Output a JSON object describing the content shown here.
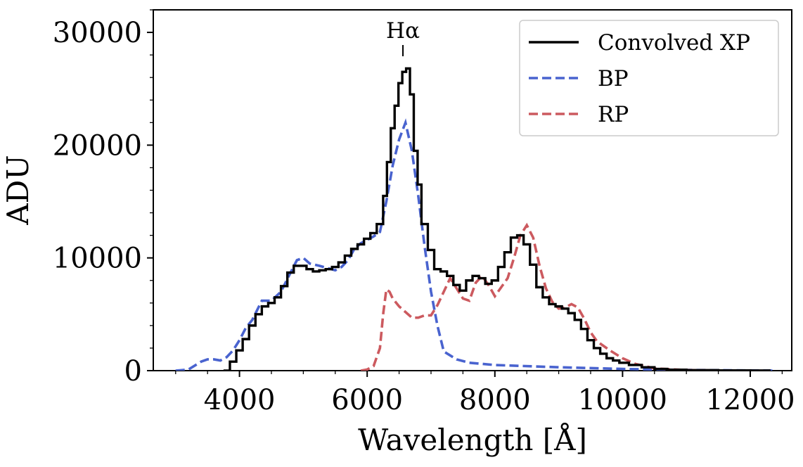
{
  "chart_data": {
    "type": "line",
    "title": "",
    "xlabel": "Wavelength [Å]",
    "ylabel": "ADU",
    "xlim": [
      2650,
      12650
    ],
    "ylim": [
      0,
      32000
    ],
    "x_ticks": [
      4000,
      6000,
      8000,
      10000,
      12000
    ],
    "x_tick_labels": [
      "4000",
      "6000",
      "8000",
      "10000",
      "12000"
    ],
    "y_ticks": [
      0,
      10000,
      20000,
      30000
    ],
    "y_tick_labels": [
      "0",
      "10000",
      "20000",
      "30000"
    ],
    "grid": false,
    "legend_position": "top-right",
    "annotation": {
      "text": "Hα",
      "x": 6560
    },
    "series": [
      {
        "name": "Convolved XP",
        "color": "#000000",
        "style": "step",
        "x": [
          3750,
          3850,
          3950,
          4050,
          4150,
          4250,
          4350,
          4450,
          4550,
          4650,
          4750,
          4850,
          4950,
          5050,
          5150,
          5250,
          5350,
          5450,
          5550,
          5650,
          5750,
          5850,
          5950,
          6050,
          6150,
          6250,
          6310,
          6370,
          6430,
          6490,
          6550,
          6610,
          6670,
          6730,
          6790,
          6850,
          6950,
          7050,
          7150,
          7250,
          7350,
          7450,
          7550,
          7650,
          7750,
          7850,
          7950,
          8050,
          8150,
          8250,
          8350,
          8450,
          8550,
          8650,
          8750,
          8850,
          8950,
          9050,
          9150,
          9250,
          9350,
          9450,
          9550,
          9650,
          9750,
          9850,
          9950,
          10100,
          10300,
          10500,
          10700,
          11000,
          11500,
          12000,
          12300
        ],
        "y": [
          0,
          800,
          1800,
          2800,
          4000,
          5000,
          5700,
          6000,
          6500,
          7500,
          8700,
          9300,
          9300,
          9000,
          8800,
          8900,
          9000,
          9200,
          9600,
          10200,
          10800,
          11200,
          11700,
          12200,
          13000,
          15500,
          18500,
          21500,
          23500,
          25500,
          26500,
          26800,
          24500,
          19500,
          16500,
          13000,
          10700,
          9000,
          8800,
          8400,
          7600,
          7100,
          8000,
          8400,
          8200,
          7700,
          8000,
          9200,
          10500,
          11800,
          12000,
          11200,
          9400,
          7400,
          6500,
          5900,
          5700,
          5500,
          5100,
          4500,
          3700,
          2700,
          2000,
          1500,
          1100,
          900,
          700,
          500,
          300,
          150,
          80,
          40,
          20,
          10,
          0
        ]
      },
      {
        "name": "BP",
        "color": "#4963cf",
        "style": "dashed",
        "x": [
          3000,
          3200,
          3400,
          3500,
          3600,
          3700,
          3800,
          3900,
          4000,
          4100,
          4200,
          4350,
          4500,
          4650,
          4800,
          4900,
          5000,
          5100,
          5250,
          5500,
          5600,
          5700,
          5800,
          5900,
          6000,
          6100,
          6200,
          6300,
          6400,
          6500,
          6600,
          6700,
          6800,
          6900,
          7000,
          7100,
          7200,
          7400,
          7600,
          8000,
          9000,
          10000,
          11000,
          12000,
          12400
        ],
        "y": [
          0,
          100,
          800,
          1000,
          1000,
          900,
          1200,
          1800,
          2700,
          3800,
          4500,
          6200,
          6200,
          7000,
          8700,
          9800,
          10000,
          9500,
          9300,
          8900,
          9200,
          9800,
          10800,
          11300,
          11600,
          11900,
          12300,
          15000,
          18200,
          20500,
          22000,
          19500,
          15500,
          11000,
          7000,
          4000,
          1700,
          1000,
          700,
          500,
          300,
          150,
          60,
          20,
          0
        ]
      },
      {
        "name": "RP",
        "color": "#cc5a5f",
        "style": "dashed",
        "x": [
          5900,
          6000,
          6100,
          6200,
          6250,
          6300,
          6350,
          6400,
          6500,
          6600,
          6700,
          6800,
          6900,
          7000,
          7100,
          7200,
          7300,
          7400,
          7500,
          7600,
          7700,
          7800,
          7900,
          8000,
          8100,
          8200,
          8300,
          8400,
          8500,
          8600,
          8700,
          8800,
          8900,
          9000,
          9100,
          9200,
          9300,
          9400,
          9500,
          9600,
          9800,
          10000,
          10200,
          10500,
          11000,
          11500,
          12000
        ],
        "y": [
          0,
          100,
          400,
          2000,
          5000,
          7200,
          7000,
          6400,
          5700,
          5200,
          4700,
          4700,
          4900,
          4900,
          5800,
          7000,
          8200,
          7300,
          6400,
          6200,
          7800,
          8400,
          7600,
          6600,
          7400,
          8200,
          10000,
          12000,
          12900,
          11800,
          9300,
          7300,
          6100,
          5500,
          5600,
          5900,
          5600,
          4600,
          3400,
          2600,
          1800,
          1100,
          600,
          200,
          50,
          10,
          0
        ]
      }
    ]
  }
}
